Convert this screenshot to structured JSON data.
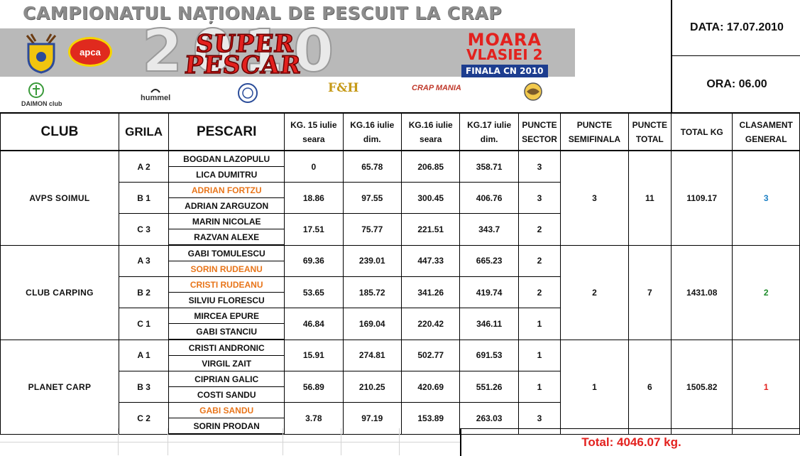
{
  "banner": {
    "title": "CAMPIONATUL NAȚIONAL DE PESCUIT LA CRAP",
    "year": "2010",
    "event_line1": "SUPER",
    "event_line2": "PESCAR",
    "venue_line1": "MOARA",
    "venue_line2": "VLASIEI 2",
    "venue_line3": "FINALA CN 2010",
    "logo_apca": "apca",
    "sponsors": [
      "DAIMON club",
      "hummel",
      "",
      "F&H",
      "CRAP MANIA",
      ""
    ]
  },
  "info": {
    "date": "DATA: 17.07.2010",
    "time": "ORA: 06.00"
  },
  "table": {
    "headers": {
      "club": "CLUB",
      "grila": "GRILA",
      "pescari": "PESCARI",
      "kg15_l1": "KG. 15 iulie",
      "kg15_l2": "seara",
      "kg16d_l1": "KG.16 iulie",
      "kg16d_l2": "dim.",
      "kg16s_l1": "KG.16 iulie",
      "kg16s_l2": "seara",
      "kg17_l1": "KG.17 iulie",
      "kg17_l2": "dim.",
      "sector_l1": "PUNCTE",
      "sector_l2": "SECTOR",
      "semi_l1": "PUNCTE",
      "semi_l2": "SEMIFINALA",
      "ptotal_l1": "PUNCTE",
      "ptotal_l2": "TOTAL",
      "totalkg": "TOTAL KG",
      "clas_l1": "CLASAMENT",
      "clas_l2": "GENERAL"
    },
    "clubs": [
      {
        "name": "AVPS SOIMUL",
        "semifinala": "3",
        "total_puncte": "11",
        "total_kg": "1109.17",
        "clasament": "3",
        "teams": [
          {
            "grila": "A 2",
            "p1": "BOGDAN LAZOPULU",
            "p2": "LICA DUMITRU",
            "kg15": "0",
            "kg16d": "65.78",
            "kg16s": "206.85",
            "kg17": "358.71",
            "sector": "3"
          },
          {
            "grila": "B 1",
            "p1": "ADRIAN FORTZU",
            "p2": "ADRIAN ZARGUZON",
            "kg15": "18.86",
            "kg16d": "97.55",
            "kg16s": "300.45",
            "kg17": "406.76",
            "sector": "3"
          },
          {
            "grila": "C 3",
            "p1": "MARIN NICOLAE",
            "p2": "RAZVAN ALEXE",
            "kg15": "17.51",
            "kg16d": "75.77",
            "kg16s": "221.51",
            "kg17": "343.7",
            "sector": "2"
          }
        ]
      },
      {
        "name": "CLUB CARPING",
        "semifinala": "2",
        "total_puncte": "7",
        "total_kg": "1431.08",
        "clasament": "2",
        "teams": [
          {
            "grila": "A 3",
            "p1": "GABI TOMULESCU",
            "p2": "SORIN RUDEANU",
            "kg15": "69.36",
            "kg16d": "239.01",
            "kg16s": "447.33",
            "kg17": "665.23",
            "sector": "2"
          },
          {
            "grila": "B 2",
            "p1": "CRISTI RUDEANU",
            "p2": "SILVIU FLORESCU",
            "kg15": "53.65",
            "kg16d": "185.72",
            "kg16s": "341.26",
            "kg17": "419.74",
            "sector": "2"
          },
          {
            "grila": "C 1",
            "p1": "MIRCEA EPURE",
            "p2": "GABI STANCIU",
            "kg15": "46.84",
            "kg16d": "169.04",
            "kg16s": "220.42",
            "kg17": "346.11",
            "sector": "1"
          }
        ]
      },
      {
        "name": "PLANET CARP",
        "semifinala": "1",
        "total_puncte": "6",
        "total_kg": "1505.82",
        "clasament": "1",
        "teams": [
          {
            "grila": "A 1",
            "p1": "CRISTI ANDRONIC",
            "p2": "VIRGIL ZAIT",
            "kg15": "15.91",
            "kg16d": "274.81",
            "kg16s": "502.77",
            "kg17": "691.53",
            "sector": "1"
          },
          {
            "grila": "B 3",
            "p1": "CIPRIAN GALIC",
            "p2": "COSTI SANDU",
            "kg15": "56.89",
            "kg16d": "210.25",
            "kg16s": "420.69",
            "kg17": "551.26",
            "sector": "1"
          },
          {
            "grila": "C 2",
            "p1": "GABI SANDU",
            "p2": "SORIN PRODAN",
            "kg15": "3.78",
            "kg16d": "97.19",
            "kg16s": "153.89",
            "kg17": "263.03",
            "sector": "3"
          }
        ]
      }
    ]
  },
  "footer": {
    "total": "Total: 4046.07 kg."
  },
  "colors": {
    "accent_red": "#e3211e",
    "orange_names": "#e8751a",
    "rank3": "#1a7fc4",
    "rank2": "#1e8c2a",
    "rank1": "#e3211e"
  }
}
